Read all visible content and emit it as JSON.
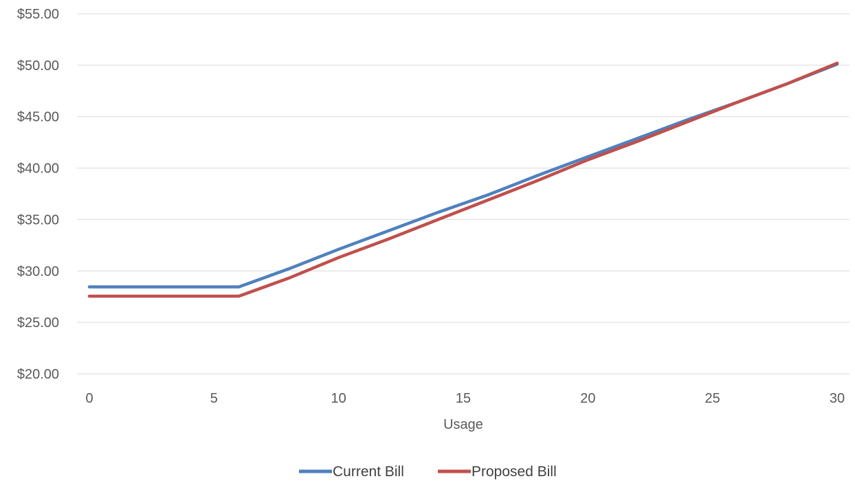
{
  "chart_data": {
    "type": "line",
    "xlabel": "Usage",
    "ylabel": "",
    "xlim": [
      0,
      30
    ],
    "ylim": [
      20,
      55
    ],
    "x_ticks": [
      0,
      5,
      10,
      15,
      20,
      25,
      30
    ],
    "y_ticks": [
      20,
      25,
      30,
      35,
      40,
      45,
      50,
      55
    ],
    "y_tick_labels": [
      "$20.00",
      "$25.00",
      "$30.00",
      "$35.00",
      "$40.00",
      "$45.00",
      "$50.00",
      "$55.00"
    ],
    "grid": true,
    "legend": "bottom",
    "x": [
      0,
      2,
      4,
      6,
      8,
      10,
      12,
      14,
      16,
      18,
      20,
      22,
      24,
      26,
      28,
      30
    ],
    "series": [
      {
        "name": "Current Bill",
        "color": "#4f81bd",
        "values": [
          28.45,
          28.45,
          28.45,
          28.45,
          30.2,
          32.1,
          33.9,
          35.7,
          37.4,
          39.3,
          41.1,
          42.9,
          44.7,
          46.4,
          48.2,
          50.1
        ]
      },
      {
        "name": "Proposed Bill",
        "color": "#c0504d",
        "values": [
          27.55,
          27.55,
          27.55,
          27.55,
          29.3,
          31.3,
          33.1,
          35.0,
          36.9,
          38.8,
          40.8,
          42.6,
          44.5,
          46.4,
          48.2,
          50.2
        ]
      }
    ]
  }
}
